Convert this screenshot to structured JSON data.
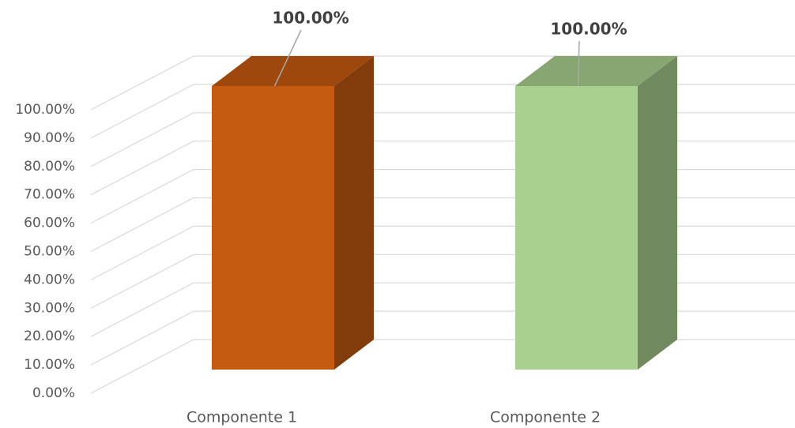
{
  "chart_data": {
    "type": "bar3d",
    "categories": [
      "Componente 1",
      "Componente 2"
    ],
    "values": [
      100,
      100
    ],
    "value_labels": [
      "100.00%",
      "100.00%"
    ],
    "colors": [
      "#c55a11",
      "#a9d08e"
    ],
    "ylim": [
      0,
      100
    ],
    "yticks": [
      {
        "value": 0,
        "label": "0.00%"
      },
      {
        "value": 10,
        "label": "10.00%"
      },
      {
        "value": 20,
        "label": "20.00%"
      },
      {
        "value": 30,
        "label": "30.00%"
      },
      {
        "value": 40,
        "label": "40.00%"
      },
      {
        "value": 50,
        "label": "50.00%"
      },
      {
        "value": 60,
        "label": "60.00%"
      },
      {
        "value": 70,
        "label": "70.00%"
      },
      {
        "value": 80,
        "label": "80.00%"
      },
      {
        "value": 90,
        "label": "90.00%"
      },
      {
        "value": 100,
        "label": "100.00%"
      }
    ],
    "grid": true
  }
}
